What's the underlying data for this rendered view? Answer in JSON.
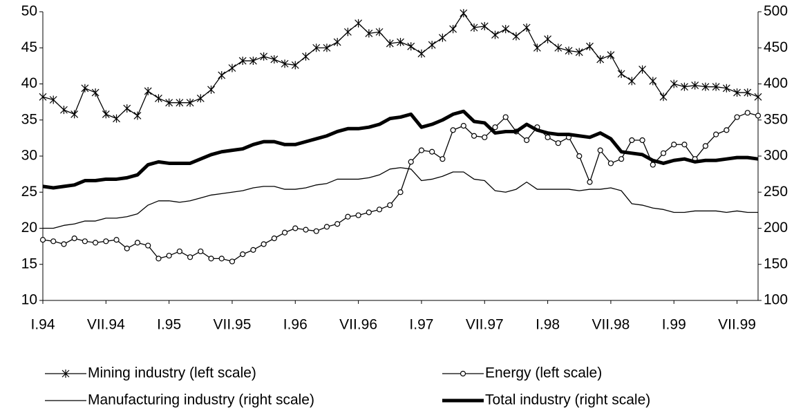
{
  "chart_data": {
    "type": "line",
    "categories": [
      "I.94",
      null,
      null,
      null,
      null,
      null,
      "VII.94",
      null,
      null,
      null,
      null,
      null,
      "I.95",
      null,
      null,
      null,
      null,
      null,
      "VII.95",
      null,
      null,
      null,
      null,
      null,
      "I.96",
      null,
      null,
      null,
      null,
      null,
      "VII.96",
      null,
      null,
      null,
      null,
      null,
      "I.97",
      null,
      null,
      null,
      null,
      null,
      "VII.97",
      null,
      null,
      null,
      null,
      null,
      "I.98",
      null,
      null,
      null,
      null,
      null,
      "VII.98",
      null,
      null,
      null,
      null,
      null,
      "I.99",
      null,
      null,
      null,
      null,
      null,
      "VII.99",
      null,
      null
    ],
    "ylim": [
      10,
      50
    ],
    "yticks": [
      10,
      15,
      20,
      25,
      30,
      35,
      40,
      45,
      50
    ],
    "y2lim": [
      100,
      500
    ],
    "y2ticks": [
      100,
      150,
      200,
      250,
      300,
      350,
      400,
      450,
      500
    ],
    "series": [
      {
        "name": "Mining industry (left scale)",
        "color": "#000000",
        "marker": "star",
        "line_width": 1.3,
        "values": [
          38.2,
          37.8,
          36.4,
          35.8,
          39.4,
          38.8,
          35.8,
          35.2,
          36.6,
          35.6,
          39.0,
          38.0,
          37.4,
          37.4,
          37.4,
          38.0,
          39.2,
          41.2,
          42.2,
          43.2,
          43.2,
          43.8,
          43.4,
          42.8,
          42.6,
          43.8,
          45.0,
          45.0,
          45.8,
          47.2,
          48.4,
          47.0,
          47.2,
          45.6,
          45.8,
          45.2,
          44.2,
          45.4,
          46.4,
          47.6,
          49.8,
          47.8,
          48.0,
          46.8,
          47.6,
          46.6,
          47.8,
          45.0,
          46.2,
          45.0,
          44.6,
          44.4,
          45.2,
          43.4,
          44.0,
          41.4,
          40.4,
          42.0,
          40.4,
          38.2,
          40.0,
          39.6,
          39.8,
          39.6,
          39.6,
          39.4,
          38.8,
          38.8,
          38.2
        ]
      },
      {
        "name": "Energy (left scale)",
        "color": "#000000",
        "marker": "circle",
        "line_width": 1.3,
        "values": [
          18.4,
          18.2,
          17.8,
          18.6,
          18.2,
          18.0,
          18.2,
          18.4,
          17.2,
          18.0,
          17.6,
          15.8,
          16.2,
          16.8,
          16.0,
          16.8,
          15.8,
          15.8,
          15.4,
          16.4,
          17.0,
          17.8,
          18.6,
          19.4,
          20.0,
          19.8,
          19.6,
          20.2,
          20.6,
          21.6,
          21.8,
          22.2,
          22.6,
          23.2,
          25.0,
          29.2,
          30.8,
          30.6,
          29.6,
          33.6,
          34.2,
          32.8,
          32.6,
          34.0,
          35.4,
          33.4,
          32.2,
          34.0,
          32.6,
          31.8,
          32.6,
          30.0,
          26.4,
          30.8,
          29.0,
          29.6,
          32.2,
          32.2,
          28.8,
          30.4,
          31.6,
          31.6,
          29.6,
          31.4,
          33.0,
          33.6,
          35.4,
          36.0,
          35.6
        ]
      },
      {
        "name": "Manufacturing industry (right scale)",
        "color": "#000000",
        "axis": "y2",
        "line_width": 1.3,
        "values": [
          200,
          200,
          204,
          206,
          210,
          210,
          214,
          214,
          216,
          220,
          232,
          238,
          238,
          236,
          238,
          242,
          246,
          248,
          250,
          252,
          256,
          258,
          258,
          254,
          254,
          256,
          260,
          262,
          268,
          268,
          268,
          270,
          274,
          282,
          284,
          282,
          266,
          268,
          272,
          278,
          278,
          268,
          266,
          252,
          250,
          254,
          264,
          254,
          254,
          254,
          254,
          252,
          254,
          254,
          256,
          252,
          234,
          232,
          228,
          226,
          222,
          222,
          224,
          224,
          224,
          222,
          224,
          222,
          222
        ]
      },
      {
        "name": "Total industry (right scale)",
        "color": "#000000",
        "axis": "y2",
        "line_width": 5,
        "values": [
          258,
          256,
          258,
          260,
          266,
          266,
          268,
          268,
          270,
          274,
          288,
          292,
          290,
          290,
          290,
          296,
          302,
          306,
          308,
          310,
          316,
          320,
          320,
          316,
          316,
          320,
          324,
          328,
          334,
          338,
          338,
          340,
          344,
          352,
          354,
          358,
          340,
          344,
          350,
          358,
          362,
          348,
          346,
          332,
          334,
          334,
          344,
          336,
          332,
          330,
          330,
          328,
          326,
          332,
          324,
          306,
          304,
          302,
          294,
          290,
          294,
          296,
          292,
          294,
          294,
          296,
          298,
          298,
          296
        ]
      }
    ]
  }
}
